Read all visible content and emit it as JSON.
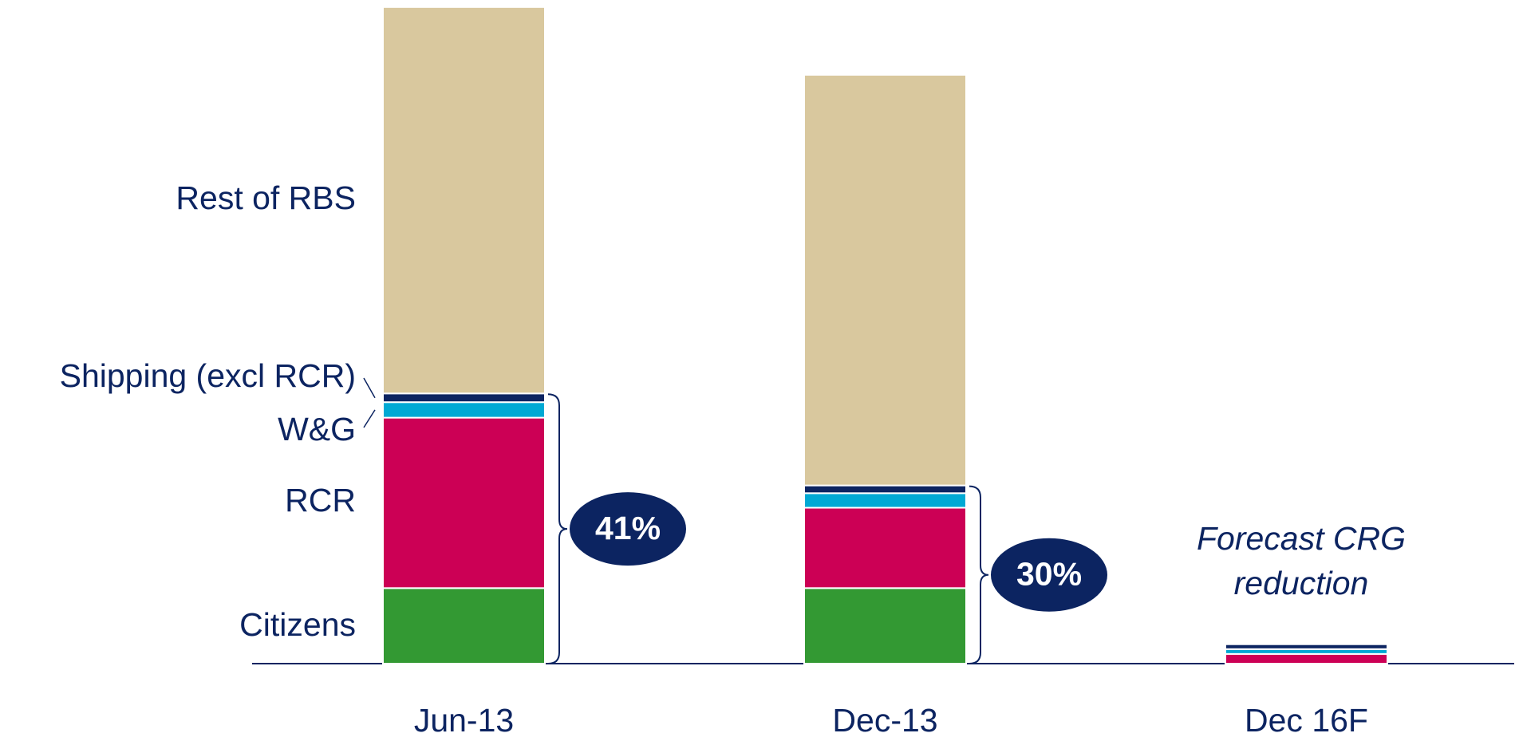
{
  "chart_data": {
    "type": "stacked_bar",
    "categories": [
      "Jun-13",
      "Dec-13",
      "Dec 16F"
    ],
    "series": [
      {
        "name": "Citizens",
        "color": "#339933",
        "values": [
          78,
          78,
          0
        ]
      },
      {
        "name": "RCR",
        "color": "#cc0055",
        "values": [
          176,
          83,
          10
        ]
      },
      {
        "name": "W&G",
        "color": "#00a9d4",
        "values": [
          16,
          15,
          5
        ]
      },
      {
        "name": "Shipping (excl RCR)",
        "color": "#0c2461",
        "values": [
          9,
          8,
          5
        ]
      },
      {
        "name": "Rest of RBS",
        "color": "#d9c89e",
        "values": [
          399,
          424,
          0
        ]
      }
    ],
    "share_labels": [
      "41%",
      "30%",
      null
    ],
    "annotation": [
      "Forecast CRG",
      "reduction"
    ],
    "ylim": [
      0,
      680
    ]
  }
}
